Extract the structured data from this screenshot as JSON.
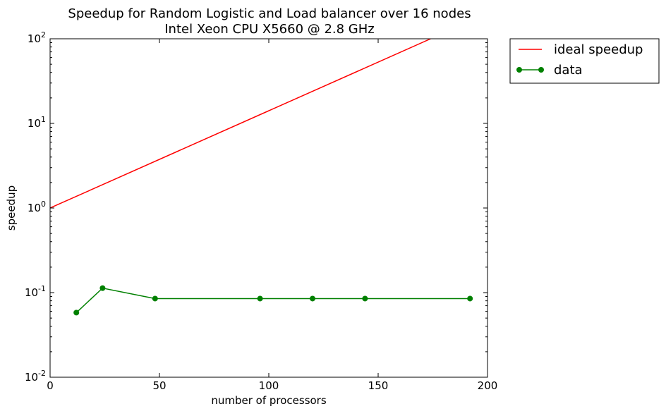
{
  "chart_data": {
    "type": "line",
    "title": "Speedup for Random Logistic and Load balancer over 16 nodes",
    "subtitle": "Intel Xeon CPU X5660 @ 2.8 GHz",
    "xlabel": "number of processors",
    "ylabel": "speedup",
    "xlim": [
      0,
      200
    ],
    "ylim": [
      0.01,
      100
    ],
    "y_scale": "log",
    "grid": false,
    "legend_position": "outside-top-right",
    "x_ticks": [
      0,
      50,
      100,
      150,
      200
    ],
    "x_tick_labels": [
      "0",
      "50",
      "100",
      "150",
      "200"
    ],
    "y_ticks": [
      0.01,
      0.1,
      1,
      10,
      100
    ],
    "y_tick_labels": [
      {
        "base": "10",
        "exp": "-2"
      },
      {
        "base": "10",
        "exp": "-1"
      },
      {
        "base": "10",
        "exp": "0"
      },
      {
        "base": "10",
        "exp": "1"
      },
      {
        "base": "10",
        "exp": "2"
      }
    ],
    "series": [
      {
        "name": "ideal speedup",
        "color": "#ff0000",
        "marker": "none",
        "x": [
          0,
          174
        ],
        "y": [
          1,
          100
        ]
      },
      {
        "name": "data",
        "color": "#008000",
        "marker": "circle",
        "x": [
          12,
          24,
          48,
          96,
          120,
          144,
          192
        ],
        "y": [
          0.058,
          0.113,
          0.085,
          0.085,
          0.085,
          0.085,
          0.085
        ]
      }
    ]
  }
}
